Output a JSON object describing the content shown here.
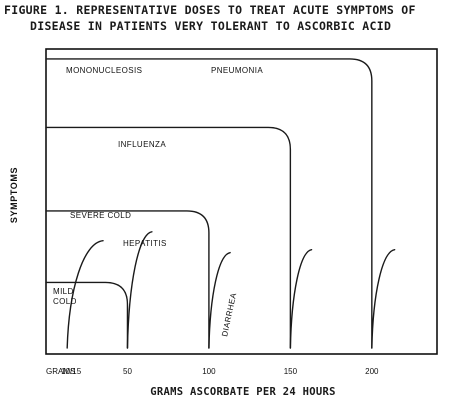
{
  "chart_data": {
    "type": "line",
    "title_line1": "FIGURE 1. REPRESENTATIVE DOSES TO TREAT ACUTE SYMPTOMS OF",
    "title_line2": "DISEASE IN PATIENTS VERY TOLERANT TO ASCORBIC ACID",
    "xlabel": "GRAMS ASCORBATE PER 24 HOURS",
    "ylabel": "SYMPTOMS",
    "x_unit_label": "GRAMS",
    "xlim": [
      0,
      240
    ],
    "ylim": [
      0,
      10
    ],
    "x_ticks": [
      {
        "value": 13,
        "label": "10/15"
      },
      {
        "value": 50,
        "label": "50"
      },
      {
        "value": 100,
        "label": "100"
      },
      {
        "value": 150,
        "label": "150"
      },
      {
        "value": 200,
        "label": "200"
      }
    ],
    "series": [
      {
        "name": "MONONUCLEOSIS / PNEUMONIA",
        "kind": "plateau",
        "level": 9.7,
        "drop_at": 200,
        "labels": [
          "MONONUCLEOSIS",
          "PNEUMONIA"
        ]
      },
      {
        "name": "INFLUENZA",
        "kind": "plateau",
        "level": 7.4,
        "drop_at": 150,
        "labels": [
          "INFLUENZA"
        ]
      },
      {
        "name": "SEVERE COLD",
        "kind": "plateau",
        "level": 4.6,
        "drop_at": 100,
        "labels": [
          "SEVERE COLD"
        ]
      },
      {
        "name": "MILD COLD",
        "kind": "plateau",
        "level": 2.2,
        "drop_at": 50,
        "labels": [
          "MILD",
          "COLD"
        ]
      },
      {
        "name": "HEPATITIS",
        "kind": "rising",
        "start": 50,
        "peak": 65,
        "level": 3.9,
        "labels": [
          "HEPATITIS"
        ]
      },
      {
        "name": "DIARRHEA",
        "kind": "rising",
        "start": 100,
        "peak": 113,
        "level": 3.2,
        "labels": [
          "DIARRHEA"
        ]
      },
      {
        "name": "Rising 10/15",
        "kind": "rising",
        "start": 13,
        "peak": 35,
        "level": 3.6,
        "labels": []
      },
      {
        "name": "Rising 150",
        "kind": "rising",
        "start": 150,
        "peak": 163,
        "level": 3.3,
        "labels": []
      },
      {
        "name": "Rising 200",
        "kind": "rising",
        "start": 200,
        "peak": 214,
        "level": 3.3,
        "labels": []
      }
    ]
  }
}
